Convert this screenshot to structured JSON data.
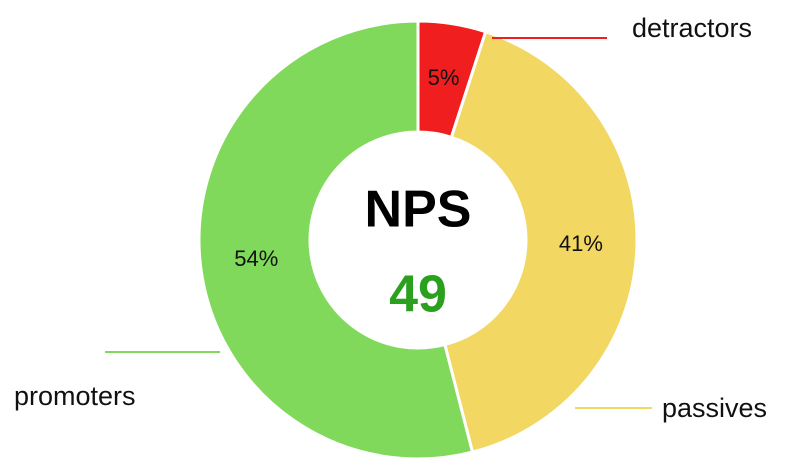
{
  "chart_data": {
    "type": "donut",
    "categories": [
      "detractors",
      "passives",
      "promoters"
    ],
    "values": [
      5,
      41,
      54
    ],
    "value_labels": [
      "5%",
      "41%",
      "54%"
    ],
    "colors": [
      "#f01e1e",
      "#f2d763",
      "#80d95a"
    ],
    "center_label": "NPS",
    "center_value": 49,
    "center_value_color": "#2aa01e"
  }
}
